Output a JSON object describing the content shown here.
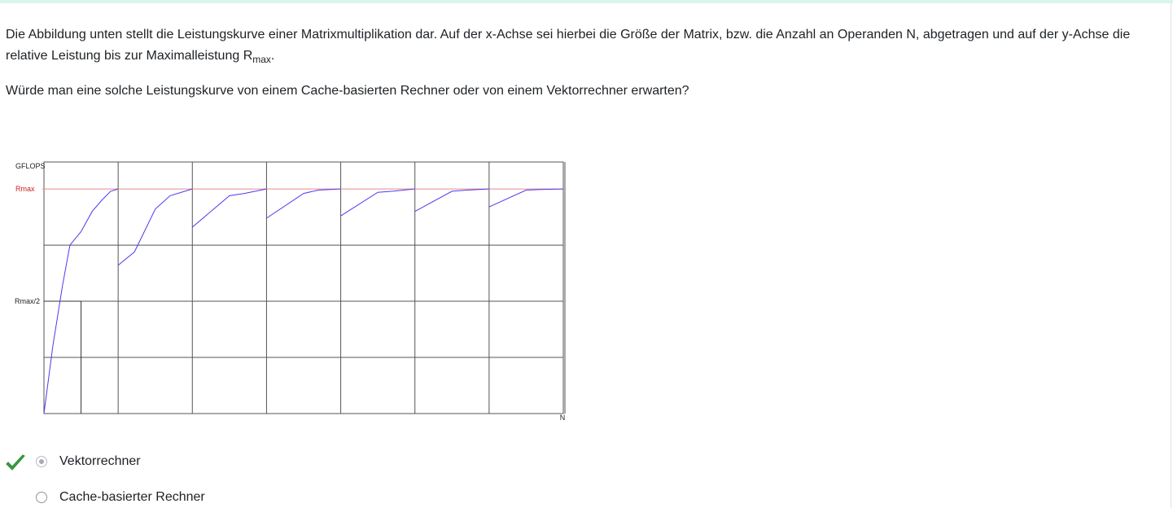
{
  "question": {
    "paragraph1_part1": "Die Abbildung unten stellt die Leistungskurve einer Matrixmultiplikation dar. Auf der x-Achse sei hierbei die Größe der Matrix, bzw. die Anzahl an Operanden N, abgetragen und auf der y-Achse die relative Leistung bis zur Maximalleistung R",
    "paragraph1_sub": "max",
    "paragraph1_end": ".",
    "paragraph2": "Würde man eine solche Leistungskurve von einem Cache-basierten Rechner oder von einem Vektorrechner erwarten?"
  },
  "chart_data": {
    "type": "line",
    "ylabel": "GFLOPS",
    "xlabel": "N",
    "y_ticks": [
      "Rmax",
      "Rmax/2"
    ],
    "reference_line": {
      "label": "Rmax",
      "value": 1.0,
      "color": "#e88a8a"
    },
    "half_marker": {
      "label": "Rmax/2",
      "value": 0.5
    },
    "x_range": [
      0,
      7
    ],
    "y_range": [
      0,
      1.12
    ],
    "grid": true,
    "series_color": "#4b3bf0",
    "segments": [
      {
        "x": [
          0,
          0.12,
          0.25,
          0.35,
          0.5,
          0.65,
          0.78,
          0.9,
          1.0
        ],
        "y": [
          0,
          0.3,
          0.57,
          0.75,
          0.81,
          0.9,
          0.95,
          0.99,
          1.0
        ]
      },
      {
        "x": [
          1.0,
          1.22,
          1.5,
          1.7,
          1.9,
          2.0
        ],
        "y": [
          0.66,
          0.72,
          0.91,
          0.97,
          0.99,
          1.0
        ]
      },
      {
        "x": [
          2.0,
          2.5,
          2.7,
          3.0
        ],
        "y": [
          0.83,
          0.97,
          0.98,
          1.0
        ]
      },
      {
        "x": [
          3.0,
          3.5,
          3.7,
          4.0
        ],
        "y": [
          0.87,
          0.98,
          0.995,
          1.0
        ]
      },
      {
        "x": [
          4.0,
          4.5,
          4.7,
          5.0
        ],
        "y": [
          0.88,
          0.985,
          0.99,
          1.0
        ]
      },
      {
        "x": [
          5.0,
          5.5,
          5.7,
          6.0
        ],
        "y": [
          0.9,
          0.99,
          0.995,
          1.0
        ]
      },
      {
        "x": [
          6.0,
          6.5,
          6.7,
          7.0
        ],
        "y": [
          0.92,
          0.995,
          0.998,
          1.0
        ]
      }
    ],
    "mark_point": {
      "x": 0.5,
      "y": 0.5
    }
  },
  "answers": [
    {
      "label": "Vektorrechner",
      "selected": true,
      "correct": true
    },
    {
      "label": "Cache-basierter Rechner",
      "selected": false,
      "correct": false
    }
  ],
  "colors": {
    "correct_check": "#3a9f3f",
    "accent_bar": "#d8f6ee"
  }
}
